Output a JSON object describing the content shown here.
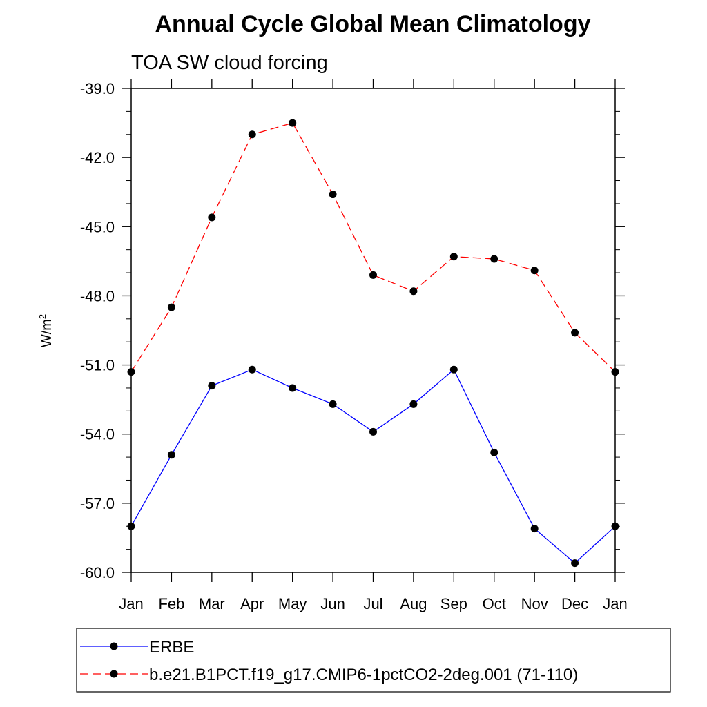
{
  "chart_data": {
    "type": "line",
    "title": "Annual Cycle Global Mean Climatology",
    "subtitle": "TOA SW cloud forcing",
    "ylabel_base": "W/m",
    "ylabel_sup": "2",
    "xlabel": "",
    "categories": [
      "Jan",
      "Feb",
      "Mar",
      "Apr",
      "May",
      "Jun",
      "Jul",
      "Aug",
      "Sep",
      "Oct",
      "Nov",
      "Dec",
      "Jan"
    ],
    "ylim": [
      -60.0,
      -39.0
    ],
    "yticks": [
      -60.0,
      -57.0,
      -54.0,
      -51.0,
      -48.0,
      -45.0,
      -42.0,
      -39.0
    ],
    "ytick_labels": [
      "-60.0",
      "-57.0",
      "-54.0",
      "-51.0",
      "-48.0",
      "-45.0",
      "-42.0",
      "-39.0"
    ],
    "grid": false,
    "legend_position": "bottom",
    "series": [
      {
        "name": "ERBE",
        "color": "#0000ff",
        "dash": "solid",
        "marker": "filled-circle",
        "values": [
          -58.0,
          -54.9,
          -51.9,
          -51.2,
          -52.0,
          -52.7,
          -53.9,
          -52.7,
          -51.2,
          -54.8,
          -58.1,
          -59.6,
          -58.0
        ]
      },
      {
        "name": "b.e21.B1PCT.f19_g17.CMIP6-1pctCO2-2deg.001 (71-110)",
        "color": "#ff0000",
        "dash": "dashed",
        "marker": "filled-circle",
        "values": [
          -51.3,
          -48.5,
          -44.6,
          -41.0,
          -40.5,
          -43.6,
          -47.1,
          -47.8,
          -46.3,
          -46.4,
          -46.9,
          -49.6,
          -51.3
        ]
      }
    ]
  }
}
